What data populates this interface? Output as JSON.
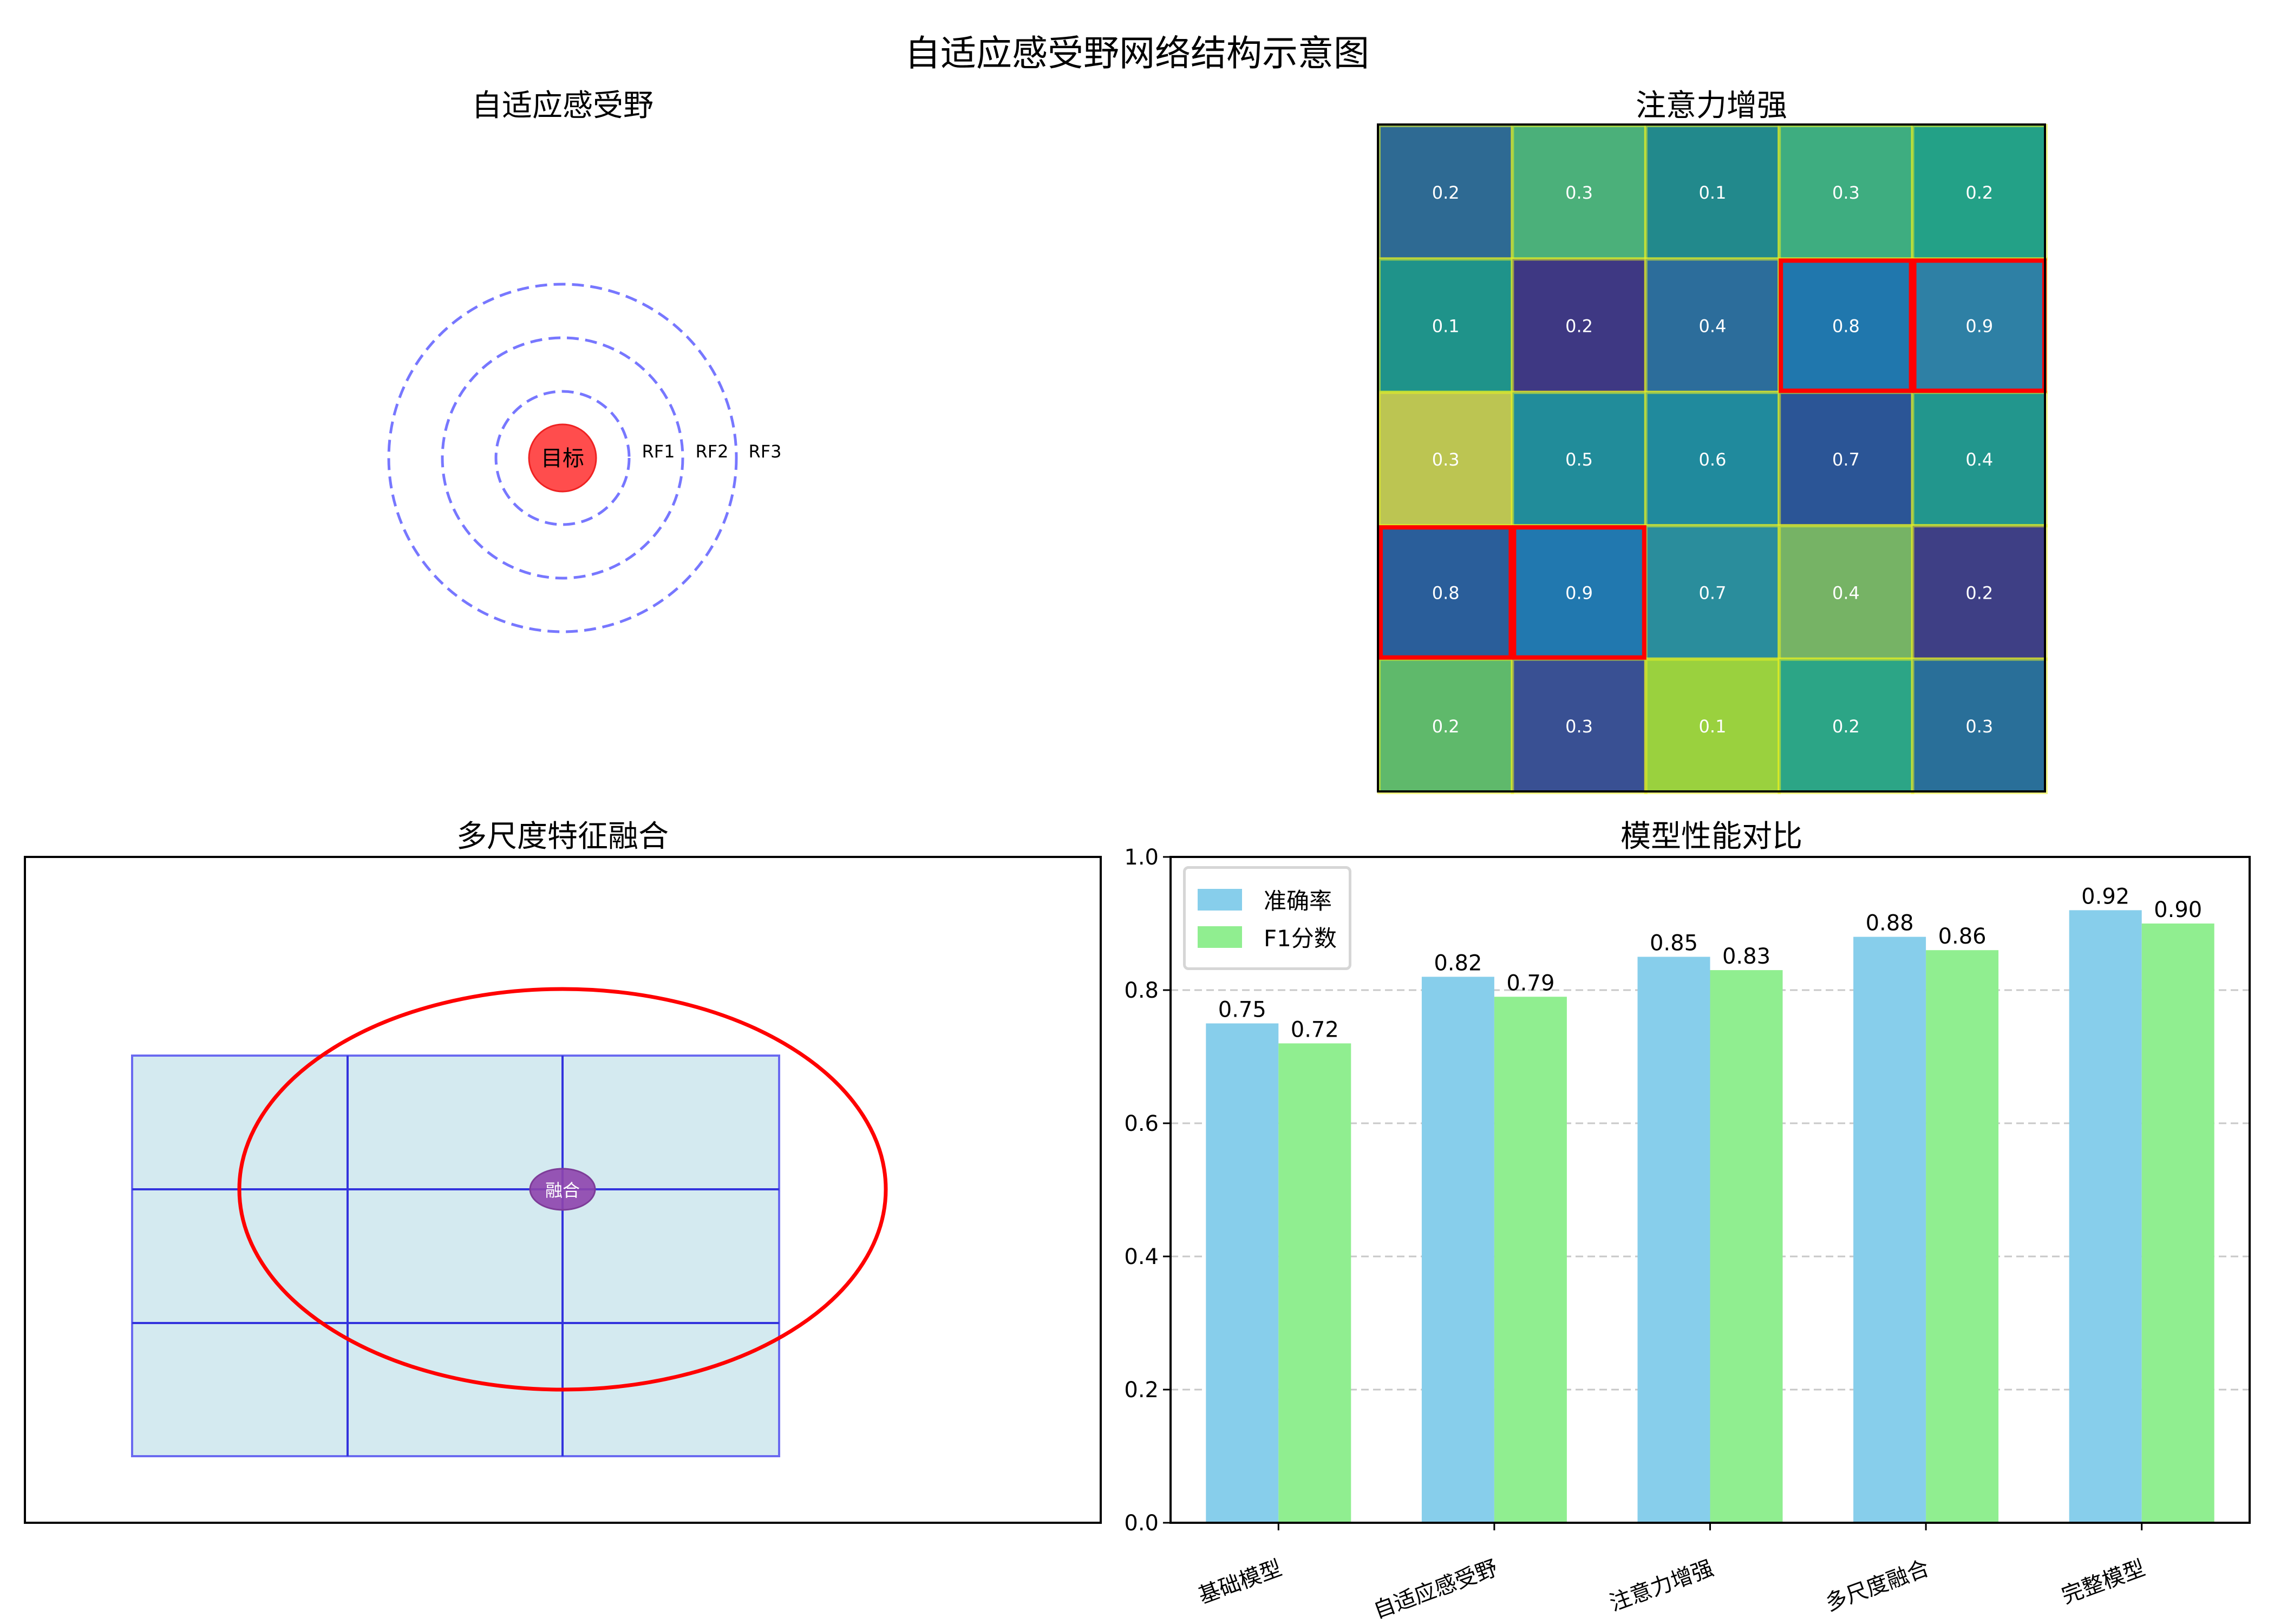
{
  "figure": {
    "title": "自适应感受野网络结构示意图"
  },
  "panels": {
    "receptive_field": {
      "title": "自适应感受野",
      "target_label": "目标",
      "target_color": "#ff4d4d",
      "ring_color": "#7777ff",
      "rings": [
        {
          "label": "RF1"
        },
        {
          "label": "RF2"
        },
        {
          "label": "RF3"
        }
      ]
    },
    "attention": {
      "title": "注意力增强"
    },
    "fusion": {
      "title": "多尺度特征融合",
      "center_label": "融合",
      "grid_fill": "#d4eaf0",
      "grid_line_color": "#3333dd",
      "ellipse_color": "#ff0000",
      "center_color": "#8e44ad"
    },
    "performance": {
      "title": "模型性能对比"
    }
  },
  "chart_data": [
    {
      "type": "heatmap",
      "title": "注意力增强",
      "rows": 5,
      "cols": 5,
      "values": [
        [
          0.2,
          0.3,
          0.1,
          0.3,
          0.2
        ],
        [
          0.1,
          0.2,
          0.4,
          0.8,
          0.9
        ],
        [
          0.3,
          0.5,
          0.6,
          0.7,
          0.4
        ],
        [
          0.8,
          0.9,
          0.7,
          0.4,
          0.2
        ],
        [
          0.2,
          0.3,
          0.1,
          0.2,
          0.3
        ]
      ],
      "cell_colors": [
        [
          "#2e6a93",
          "#4bb07a",
          "#22898c",
          "#3ead80",
          "#23a187"
        ],
        [
          "#1f938a",
          "#3e3883",
          "#2c6d9b",
          "#2077ad",
          "#2e80a5"
        ],
        [
          "#bcc552",
          "#218c9a",
          "#208a9d",
          "#2b5596",
          "#22968d"
        ],
        [
          "#2a5e9a",
          "#2178af",
          "#2a8d9c",
          "#76b365",
          "#3e3f85"
        ],
        [
          "#5fb96b",
          "#395093",
          "#9ad13e",
          "#2ca586",
          "#296f99"
        ]
      ],
      "highlighted_cells": [
        [
          1,
          3
        ],
        [
          1,
          4
        ],
        [
          3,
          0
        ],
        [
          3,
          1
        ]
      ],
      "highlight_color": "#ff0000",
      "grid_line_color": "#e8f020",
      "xlabel": "",
      "ylabel": ""
    },
    {
      "type": "bar",
      "title": "模型性能对比",
      "categories": [
        "基础模型",
        "自适应感受野",
        "注意力增强",
        "多尺度融合",
        "完整模型"
      ],
      "series": [
        {
          "name": "准确率",
          "color": "#87ceeb",
          "values": [
            0.75,
            0.82,
            0.85,
            0.88,
            0.92
          ],
          "labels": [
            "0.75",
            "0.82",
            "0.85",
            "0.88",
            "0.92"
          ]
        },
        {
          "name": "F1分数",
          "color": "#90ee90",
          "values": [
            0.72,
            0.79,
            0.83,
            0.86,
            0.9
          ],
          "labels": [
            "0.72",
            "0.79",
            "0.83",
            "0.86",
            "0.90"
          ]
        }
      ],
      "xlabel": "",
      "ylabel": "",
      "ylim": [
        0,
        1.0
      ],
      "yticks": [
        "0.0",
        "0.2",
        "0.4",
        "0.6",
        "0.8",
        "1.0"
      ],
      "grid": "y-dashed",
      "legend_position": "upper left",
      "xtick_rotation": 20
    }
  ]
}
